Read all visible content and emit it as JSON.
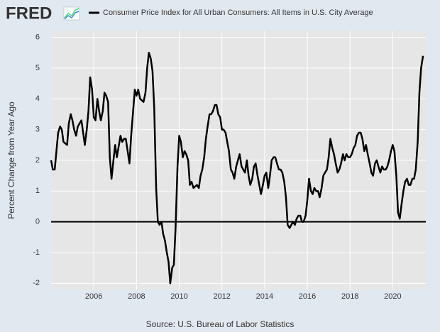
{
  "chart_data": {
    "type": "line",
    "logo": "FRED",
    "y_label": "Percent Change from Year Ago",
    "source": "Source: U.S. Bureau of Labor Statistics",
    "xlim": [
      2004,
      2021.55
    ],
    "xticks": [
      2006,
      2008,
      2010,
      2012,
      2014,
      2016,
      2018,
      2020
    ],
    "ylim": [
      -2.2,
      6.2
    ],
    "yticks": [
      -2,
      -1,
      0,
      1,
      2,
      3,
      4,
      5,
      6
    ],
    "grid": true,
    "zero_line": true,
    "x": [
      2004.0,
      2004.08,
      2004.17,
      2004.25,
      2004.33,
      2004.42,
      2004.5,
      2004.58,
      2004.75,
      2004.83,
      2004.92,
      2005.0,
      2005.08,
      2005.17,
      2005.25,
      2005.42,
      2005.5,
      2005.58,
      2005.67,
      2005.75,
      2005.83,
      2005.92,
      2006.0,
      2006.08,
      2006.17,
      2006.25,
      2006.33,
      2006.42,
      2006.5,
      2006.58,
      2006.67,
      2006.75,
      2006.83,
      2006.92,
      2007.0,
      2007.08,
      2007.25,
      2007.33,
      2007.42,
      2007.5,
      2007.67,
      2007.75,
      2007.83,
      2007.92,
      2008.0,
      2008.08,
      2008.17,
      2008.33,
      2008.42,
      2008.5,
      2008.58,
      2008.67,
      2008.75,
      2008.83,
      2008.92,
      2009.0,
      2009.08,
      2009.17,
      2009.25,
      2009.33,
      2009.42,
      2009.5,
      2009.58,
      2009.67,
      2009.75,
      2009.83,
      2009.92,
      2010.0,
      2010.08,
      2010.17,
      2010.25,
      2010.33,
      2010.42,
      2010.5,
      2010.58,
      2010.67,
      2010.83,
      2010.92,
      2011.0,
      2011.08,
      2011.17,
      2011.25,
      2011.33,
      2011.42,
      2011.5,
      2011.58,
      2011.67,
      2011.75,
      2011.83,
      2011.92,
      2012.0,
      2012.08,
      2012.17,
      2012.25,
      2012.33,
      2012.42,
      2012.5,
      2012.58,
      2012.67,
      2012.75,
      2012.83,
      2012.92,
      2013.0,
      2013.08,
      2013.17,
      2013.25,
      2013.33,
      2013.42,
      2013.5,
      2013.58,
      2013.67,
      2013.75,
      2013.83,
      2013.92,
      2014.0,
      2014.08,
      2014.17,
      2014.25,
      2014.33,
      2014.42,
      2014.5,
      2014.58,
      2014.67,
      2014.75,
      2014.83,
      2014.92,
      2015.0,
      2015.08,
      2015.17,
      2015.25,
      2015.33,
      2015.42,
      2015.5,
      2015.58,
      2015.67,
      2015.75,
      2015.83,
      2015.92,
      2016.0,
      2016.08,
      2016.17,
      2016.25,
      2016.33,
      2016.42,
      2016.5,
      2016.58,
      2016.67,
      2016.75,
      2016.83,
      2016.92,
      2017.0,
      2017.08,
      2017.17,
      2017.25,
      2017.33,
      2017.42,
      2017.5,
      2017.58,
      2017.67,
      2017.75,
      2017.83,
      2017.92,
      2018.0,
      2018.08,
      2018.17,
      2018.25,
      2018.33,
      2018.42,
      2018.5,
      2018.58,
      2018.67,
      2018.75,
      2018.83,
      2018.92,
      2019.0,
      2019.08,
      2019.17,
      2019.25,
      2019.33,
      2019.42,
      2019.5,
      2019.58,
      2019.67,
      2019.75,
      2019.83,
      2019.92,
      2020.0,
      2020.08,
      2020.17,
      2020.25,
      2020.33,
      2020.42,
      2020.5,
      2020.58,
      2020.67,
      2020.75,
      2020.83,
      2020.92,
      2021.0,
      2021.08,
      2021.17,
      2021.25,
      2021.33,
      2021.42
    ],
    "series": [
      {
        "name": "Consumer Price Index for All Urban Consumers: All Items in U.S. City Average",
        "color": "#000000",
        "values": [
          2.0,
          1.7,
          1.7,
          2.3,
          2.9,
          3.1,
          3.0,
          2.6,
          2.5,
          3.2,
          3.5,
          3.3,
          3.0,
          2.8,
          3.1,
          3.3,
          2.9,
          2.5,
          3.0,
          3.6,
          4.7,
          4.3,
          3.4,
          3.3,
          4.0,
          3.6,
          3.3,
          3.6,
          4.2,
          4.1,
          3.9,
          2.1,
          1.4,
          2.0,
          2.5,
          2.1,
          2.8,
          2.6,
          2.7,
          2.7,
          1.9,
          2.8,
          3.5,
          4.3,
          4.1,
          4.3,
          4.0,
          3.9,
          4.2,
          5.0,
          5.5,
          5.3,
          4.9,
          3.7,
          1.1,
          0.0,
          -0.1,
          0.0,
          -0.4,
          -0.6,
          -1.0,
          -1.3,
          -2.0,
          -1.5,
          -1.4,
          -0.2,
          1.8,
          2.8,
          2.6,
          2.1,
          2.3,
          2.2,
          2.0,
          1.2,
          1.3,
          1.1,
          1.2,
          1.1,
          1.5,
          1.7,
          2.1,
          2.7,
          3.1,
          3.5,
          3.5,
          3.6,
          3.8,
          3.8,
          3.5,
          3.4,
          3.0,
          3.0,
          2.9,
          2.6,
          2.3,
          1.7,
          1.6,
          1.4,
          1.8,
          2.0,
          2.2,
          1.8,
          1.7,
          1.6,
          2.0,
          1.5,
          1.2,
          1.4,
          1.8,
          1.9,
          1.5,
          1.2,
          0.9,
          1.2,
          1.5,
          1.6,
          1.1,
          1.5,
          2.0,
          2.1,
          2.1,
          1.9,
          1.7,
          1.7,
          1.6,
          1.3,
          0.8,
          -0.1,
          -0.2,
          -0.1,
          0.0,
          -0.1,
          0.1,
          0.2,
          0.2,
          0.0,
          0.0,
          0.2,
          0.7,
          1.4,
          1.0,
          0.9,
          1.1,
          1.0,
          1.0,
          0.8,
          1.1,
          1.5,
          1.6,
          1.7,
          2.1,
          2.7,
          2.4,
          2.2,
          1.9,
          1.6,
          1.7,
          1.9,
          2.2,
          2.0,
          2.2,
          2.1,
          2.1,
          2.2,
          2.4,
          2.5,
          2.8,
          2.9,
          2.9,
          2.7,
          2.3,
          2.5,
          2.2,
          1.9,
          1.6,
          1.5,
          1.9,
          2.0,
          1.8,
          1.6,
          1.8,
          1.7,
          1.7,
          1.8,
          2.0,
          2.3,
          2.5,
          2.3,
          1.5,
          0.3,
          0.1,
          0.6,
          1.0,
          1.3,
          1.4,
          1.2,
          1.2,
          1.4,
          1.4,
          1.7,
          2.6,
          4.2,
          5.0,
          5.4
        ]
      }
    ]
  }
}
